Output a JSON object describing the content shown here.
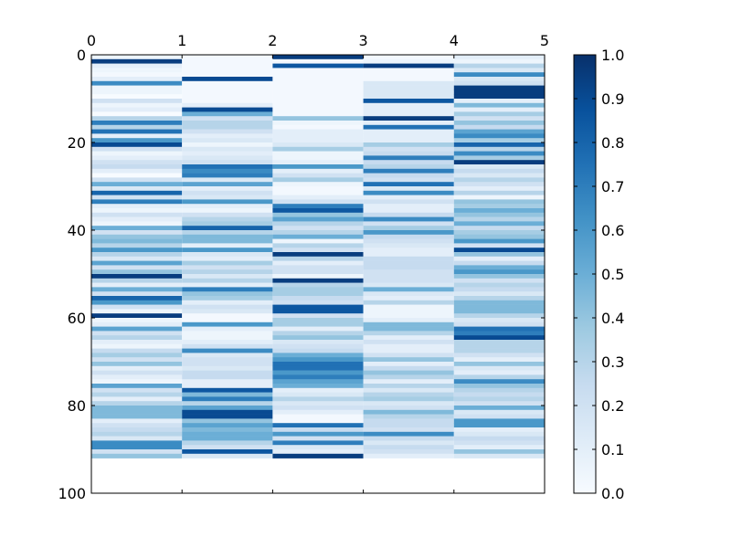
{
  "chart_data": {
    "type": "heatmap",
    "title": "",
    "xlabel": "",
    "ylabel": "",
    "colormap": "Blues",
    "colormap_stops": [
      "#f7fbff",
      "#deebf7",
      "#c6dbef",
      "#9ecae1",
      "#6baed6",
      "#4292c6",
      "#2171b5",
      "#08519c",
      "#08306b"
    ],
    "x_axis": {
      "position": "top",
      "range": [
        0,
        5
      ],
      "ticks": [
        0,
        1,
        2,
        3,
        4,
        5
      ],
      "tick_labels": [
        "0",
        "1",
        "2",
        "3",
        "4",
        "5"
      ]
    },
    "y_axis": {
      "inverted": true,
      "range": [
        0,
        100
      ],
      "ticks": [
        0,
        20,
        40,
        60,
        80,
        100
      ],
      "tick_labels": [
        "0",
        "20",
        "40",
        "60",
        "80",
        "100"
      ]
    },
    "colorbar": {
      "range": [
        0,
        1
      ],
      "ticks": [
        0,
        0.1,
        0.2,
        0.3,
        0.4,
        0.5,
        0.6,
        0.7,
        0.8,
        0.9,
        1.0
      ],
      "tick_labels": [
        "0.0",
        "0.1",
        "0.2",
        "0.3",
        "0.4",
        "0.5",
        "0.6",
        "0.7",
        "0.8",
        "0.9",
        "1.0"
      ]
    },
    "n_rows": 92,
    "columns": [
      [
        0.05,
        0.95,
        0.1,
        0.05,
        0.02,
        0.1,
        0.65,
        0.05,
        0.05,
        0.0,
        0.2,
        0.05,
        0.1,
        0.0,
        0.3,
        0.7,
        0.3,
        0.75,
        0.1,
        0.6,
        0.9,
        0.2,
        0.05,
        0.1,
        0.2,
        0.25,
        0.1,
        0.0,
        0.2,
        0.5,
        0.15,
        0.8,
        0.2,
        0.7,
        0.1,
        0.05,
        0.2,
        0.1,
        0.05,
        0.5,
        0.2,
        0.4,
        0.45,
        0.3,
        0.6,
        0.3,
        0.15,
        0.55,
        0.2,
        0.4,
        0.95,
        0.3,
        0.1,
        0.5,
        0.2,
        0.8,
        0.6,
        0.2,
        0.05,
        0.95,
        0.05,
        0.1,
        0.55,
        0.2,
        0.3,
        0.1,
        0.05,
        0.25,
        0.35,
        0.2,
        0.4,
        0.1,
        0.2,
        0.1,
        0.05,
        0.55,
        0.2,
        0.3,
        0.1,
        0.3,
        0.45,
        0.45,
        0.45,
        0.1,
        0.2,
        0.25,
        0.3,
        0.15,
        0.65,
        0.65,
        0.2,
        0.4
      ],
      [
        0.02,
        0.02,
        0.02,
        0.02,
        0.02,
        0.9,
        0.02,
        0.02,
        0.02,
        0.02,
        0.02,
        0.1,
        0.9,
        0.5,
        0.2,
        0.3,
        0.3,
        0.2,
        0.1,
        0.15,
        0.05,
        0.15,
        0.1,
        0.15,
        0.2,
        0.75,
        0.65,
        0.7,
        0.15,
        0.55,
        0.1,
        0.2,
        0.15,
        0.6,
        0.1,
        0.05,
        0.2,
        0.3,
        0.35,
        0.8,
        0.3,
        0.45,
        0.45,
        0.1,
        0.6,
        0.15,
        0.1,
        0.35,
        0.2,
        0.3,
        0.15,
        0.3,
        0.1,
        0.7,
        0.4,
        0.35,
        0.1,
        0.2,
        0.15,
        0.02,
        0.02,
        0.6,
        0.1,
        0.05,
        0.05,
        0.1,
        0.2,
        0.65,
        0.15,
        0.2,
        0.2,
        0.15,
        0.25,
        0.25,
        0.1,
        0.1,
        0.85,
        0.45,
        0.7,
        0.3,
        0.55,
        0.9,
        0.9,
        0.4,
        0.55,
        0.45,
        0.5,
        0.5,
        0.3,
        0.2,
        0.85,
        0.15
      ],
      [
        0.95,
        0.02,
        0.85,
        0.02,
        0.02,
        0.02,
        0.02,
        0.02,
        0.02,
        0.02,
        0.02,
        0.02,
        0.02,
        0.02,
        0.4,
        0.05,
        0.02,
        0.1,
        0.1,
        0.1,
        0.15,
        0.35,
        0.05,
        0.05,
        0.1,
        0.6,
        0.1,
        0.2,
        0.35,
        0.05,
        0.02,
        0.02,
        0.1,
        0.2,
        0.7,
        0.85,
        0.4,
        0.55,
        0.3,
        0.2,
        0.3,
        0.5,
        0.05,
        0.3,
        0.2,
        0.95,
        0.3,
        0.1,
        0.2,
        0.2,
        0.05,
        0.95,
        0.3,
        0.35,
        0.35,
        0.25,
        0.2,
        0.85,
        0.85,
        0.2,
        0.35,
        0.35,
        0.1,
        0.3,
        0.4,
        0.15,
        0.2,
        0.25,
        0.5,
        0.6,
        0.75,
        0.75,
        0.6,
        0.7,
        0.55,
        0.5,
        0.1,
        0.15,
        0.3,
        0.15,
        0.2,
        0.1,
        0.02,
        0.02,
        0.75,
        0.25,
        0.6,
        0.2,
        0.7,
        0.15,
        0.1,
        0.95
      ],
      [
        0.02,
        0.05,
        0.95,
        0.02,
        0.02,
        0.02,
        0.15,
        0.15,
        0.15,
        0.15,
        0.85,
        0.1,
        0.1,
        0.1,
        0.95,
        0.1,
        0.75,
        0.1,
        0.1,
        0.1,
        0.35,
        0.2,
        0.25,
        0.7,
        0.25,
        0.3,
        0.7,
        0.25,
        0.2,
        0.75,
        0.15,
        0.65,
        0.1,
        0.2,
        0.1,
        0.1,
        0.25,
        0.65,
        0.2,
        0.35,
        0.6,
        0.25,
        0.2,
        0.15,
        0.1,
        0.1,
        0.25,
        0.25,
        0.25,
        0.2,
        0.2,
        0.2,
        0.15,
        0.5,
        0.15,
        0.1,
        0.3,
        0.05,
        0.05,
        0.05,
        0.1,
        0.45,
        0.45,
        0.3,
        0.1,
        0.2,
        0.1,
        0.1,
        0.2,
        0.4,
        0.1,
        0.25,
        0.4,
        0.3,
        0.1,
        0.3,
        0.15,
        0.3,
        0.35,
        0.15,
        0.2,
        0.45,
        0.3,
        0.25,
        0.25,
        0.2,
        0.65,
        0.25,
        0.15,
        0.25,
        0.2,
        0.1
      ],
      [
        0.1,
        0.05,
        0.3,
        0.15,
        0.65,
        0.15,
        0.2,
        0.95,
        0.95,
        0.95,
        0.1,
        0.45,
        0.1,
        0.35,
        0.2,
        0.4,
        0.25,
        0.55,
        0.65,
        0.35,
        0.8,
        0.3,
        0.65,
        0.35,
        0.95,
        0.15,
        0.25,
        0.15,
        0.3,
        0.2,
        0.1,
        0.3,
        0.05,
        0.4,
        0.35,
        0.5,
        0.4,
        0.3,
        0.5,
        0.25,
        0.35,
        0.4,
        0.6,
        0.2,
        0.9,
        0.4,
        0.1,
        0.25,
        0.5,
        0.6,
        0.4,
        0.2,
        0.3,
        0.25,
        0.15,
        0.3,
        0.45,
        0.45,
        0.45,
        0.3,
        0.15,
        0.2,
        0.75,
        0.7,
        0.9,
        0.3,
        0.3,
        0.3,
        0.2,
        0.1,
        0.4,
        0.15,
        0.1,
        0.3,
        0.65,
        0.4,
        0.3,
        0.25,
        0.3,
        0.2,
        0.5,
        0.15,
        0.2,
        0.6,
        0.6,
        0.1,
        0.15,
        0.25,
        0.2,
        0.1,
        0.4,
        0.15
      ]
    ]
  }
}
